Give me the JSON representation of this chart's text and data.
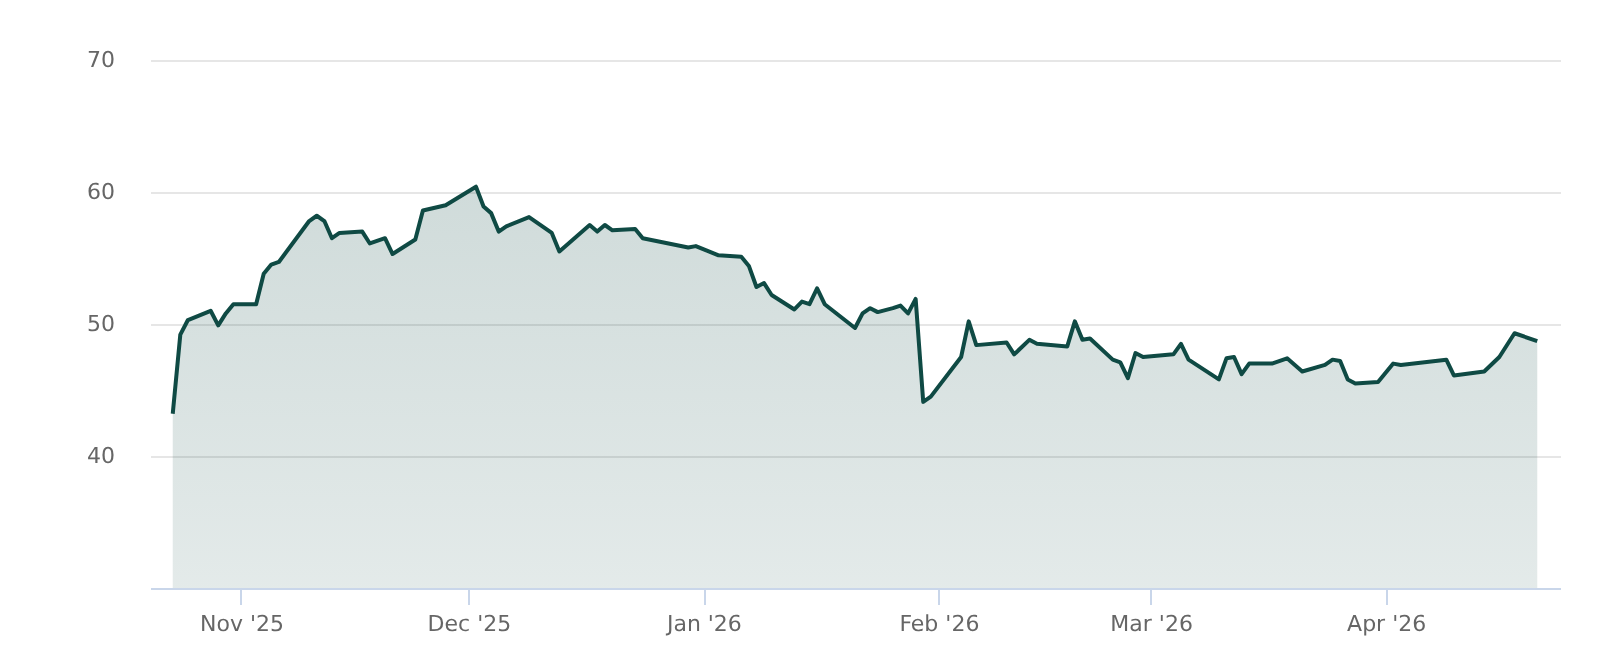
{
  "chart_data": {
    "type": "area",
    "xlim": [
      "2025-10-20",
      "2026-04-24"
    ],
    "ylim": [
      30,
      70
    ],
    "yticks": [
      40,
      50,
      60,
      70
    ],
    "xticks": [
      {
        "value": "2025-11-01",
        "label": "Nov '25"
      },
      {
        "value": "2025-12-01",
        "label": "Dec '25"
      },
      {
        "value": "2026-01-01",
        "label": "Jan '26"
      },
      {
        "value": "2026-02-01",
        "label": "Feb '26"
      },
      {
        "value": "2026-03-01",
        "label": "Mar '26"
      },
      {
        "value": "2026-04-01",
        "label": "Apr '26"
      }
    ],
    "grid": "y",
    "x": [
      "2025-10-23",
      "2025-10-24",
      "2025-10-25",
      "2025-10-28",
      "2025-10-29",
      "2025-10-30",
      "2025-10-31",
      "2025-11-03",
      "2025-11-04",
      "2025-11-05",
      "2025-11-06",
      "2025-11-10",
      "2025-11-11",
      "2025-11-12",
      "2025-11-13",
      "2025-11-14",
      "2025-11-17",
      "2025-11-18",
      "2025-11-20",
      "2025-11-21",
      "2025-11-24",
      "2025-11-25",
      "2025-11-28",
      "2025-12-02",
      "2025-12-03",
      "2025-12-04",
      "2025-12-05",
      "2025-12-06",
      "2025-12-09",
      "2025-12-12",
      "2025-12-13",
      "2025-12-17",
      "2025-12-18",
      "2025-12-19",
      "2025-12-20",
      "2025-12-23",
      "2025-12-24",
      "2025-12-30",
      "2025-12-31",
      "2026-01-03",
      "2026-01-06",
      "2026-01-07",
      "2026-01-08",
      "2026-01-09",
      "2026-01-10",
      "2026-01-13",
      "2026-01-14",
      "2026-01-15",
      "2026-01-16",
      "2026-01-17",
      "2026-01-21",
      "2026-01-22",
      "2026-01-23",
      "2026-01-24",
      "2026-01-26",
      "2026-01-27",
      "2026-01-28",
      "2026-01-29",
      "2026-01-30",
      "2026-01-31",
      "2026-02-04",
      "2026-02-05",
      "2026-02-06",
      "2026-02-10",
      "2026-02-11",
      "2026-02-13",
      "2026-02-14",
      "2026-02-18",
      "2026-02-19",
      "2026-02-20",
      "2026-02-21",
      "2026-02-24",
      "2026-02-25",
      "2026-02-26",
      "2026-02-27",
      "2026-02-28",
      "2026-03-04",
      "2026-03-05",
      "2026-03-06",
      "2026-03-10",
      "2026-03-11",
      "2026-03-12",
      "2026-03-13",
      "2026-03-14",
      "2026-03-17",
      "2026-03-19",
      "2026-03-21",
      "2026-03-24",
      "2026-03-25",
      "2026-03-26",
      "2026-03-27",
      "2026-03-28",
      "2026-03-31",
      "2026-04-01",
      "2026-04-02",
      "2026-04-03",
      "2026-04-09",
      "2026-04-10",
      "2026-04-14",
      "2026-04-16",
      "2026-04-18",
      "2026-04-21"
    ],
    "series": [
      {
        "color": "#0f4a44",
        "values": [
          43.2,
          49.2,
          50.3,
          51.0,
          49.9,
          50.8,
          51.5,
          51.5,
          53.8,
          54.5,
          54.7,
          57.8,
          58.2,
          57.8,
          56.5,
          56.9,
          57.0,
          56.1,
          56.5,
          55.3,
          56.4,
          58.6,
          59.0,
          60.4,
          58.9,
          58.4,
          57.0,
          57.4,
          58.1,
          56.9,
          55.5,
          57.5,
          57.0,
          57.5,
          57.1,
          57.2,
          56.5,
          55.8,
          55.9,
          55.2,
          55.1,
          54.4,
          52.8,
          53.1,
          52.2,
          51.1,
          51.7,
          51.5,
          52.7,
          51.5,
          49.7,
          50.8,
          51.2,
          50.9,
          51.2,
          51.4,
          50.8,
          51.9,
          44.1,
          44.5,
          47.5,
          50.2,
          48.4,
          48.6,
          47.7,
          48.8,
          48.5,
          48.3,
          50.2,
          48.8,
          48.9,
          47.3,
          47.1,
          45.9,
          47.8,
          47.5,
          47.7,
          48.5,
          47.3,
          45.8,
          47.4,
          47.5,
          46.2,
          47.0,
          47.0,
          47.4,
          46.4,
          46.9,
          47.3,
          47.2,
          45.8,
          45.5,
          45.6,
          46.3,
          47.0,
          46.9,
          47.3,
          46.1,
          46.4,
          47.5,
          49.3,
          48.7
        ]
      }
    ]
  }
}
